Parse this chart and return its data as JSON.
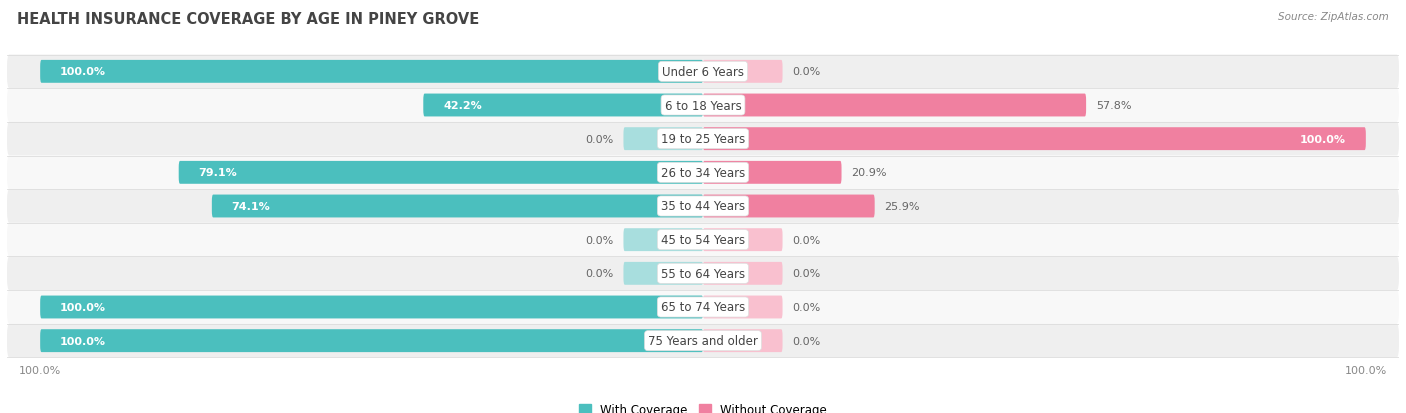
{
  "title": "HEALTH INSURANCE COVERAGE BY AGE IN PINEY GROVE",
  "source": "Source: ZipAtlas.com",
  "categories": [
    "Under 6 Years",
    "6 to 18 Years",
    "19 to 25 Years",
    "26 to 34 Years",
    "35 to 44 Years",
    "45 to 54 Years",
    "55 to 64 Years",
    "65 to 74 Years",
    "75 Years and older"
  ],
  "with_coverage": [
    100.0,
    42.2,
    0.0,
    79.1,
    74.1,
    0.0,
    0.0,
    100.0,
    100.0
  ],
  "without_coverage": [
    0.0,
    57.8,
    100.0,
    20.9,
    25.9,
    0.0,
    0.0,
    0.0,
    0.0
  ],
  "color_with": "#4BBFBE",
  "color_without": "#F080A0",
  "color_with_light": "#A8DEDE",
  "color_without_light": "#F9C0CF",
  "color_bg_odd": "#EFEFEF",
  "color_bg_even": "#F8F8F8",
  "color_separator": "#DDDDDD",
  "title_color": "#444444",
  "source_color": "#888888",
  "label_color": "#444444",
  "value_color_inside": "#FFFFFF",
  "value_color_outside": "#666666",
  "title_fontsize": 10.5,
  "cat_fontsize": 8.5,
  "val_fontsize": 8.0,
  "legend_fontsize": 8.5,
  "axis_tick_fontsize": 8.0,
  "xlim": 105,
  "stub_size": 12
}
